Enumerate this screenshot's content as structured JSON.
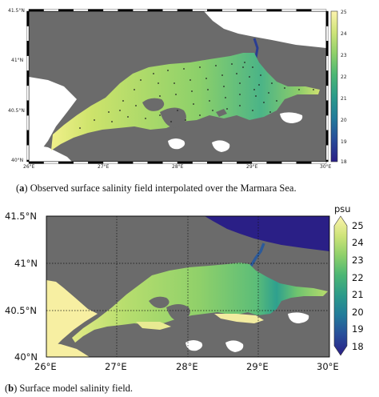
{
  "panel_a": {
    "caption_letter": "a",
    "caption_text": "Observed surface salinity field interpolated over the Marmara Sea.",
    "lat_ticks": [
      "41.5°N",
      "41°N",
      "40.5°N",
      "40°N"
    ],
    "lon_ticks": [
      "26°E",
      "27°E",
      "28°E",
      "29°E",
      "30°E"
    ],
    "colorbar_ticks": [
      "25",
      "24",
      "23",
      "22",
      "21",
      "20",
      "19",
      "18"
    ],
    "stations_shown": true
  },
  "panel_b": {
    "caption_letter": "b",
    "caption_text": "Surface model salinity field.",
    "colorbar_unit": "psu",
    "lat_ticks": [
      "41.5°N",
      "41°N",
      "40.5°N",
      "40°N"
    ],
    "lon_ticks": [
      "26°E",
      "27°E",
      "28°E",
      "29°E",
      "30°E"
    ],
    "colorbar_ticks": [
      "25",
      "24",
      "23",
      "22",
      "21",
      "20",
      "19",
      "18"
    ],
    "gridlines": "dotted"
  },
  "colors": {
    "land": "#6b6b6b",
    "sea_high_salinity": "#f4efa4",
    "sea_mid_salinity": "#7ec86a",
    "sea_low_salinity": "#2b90a4",
    "black_sea": "#26218a",
    "colorbar": [
      "#fcf3ad",
      "#cfe479",
      "#8fd06a",
      "#4db774",
      "#2b9a8a",
      "#227b9a",
      "#284e9a",
      "#2a1f86"
    ]
  },
  "chart_data": {
    "type": "heatmap",
    "variable": "surface salinity",
    "unit": "psu",
    "colorbar_range": [
      18,
      25
    ],
    "lon_range": [
      26,
      30
    ],
    "lat_range": [
      40,
      41.5
    ],
    "observed_min_visible": 22,
    "observed_max_visible": 24.5,
    "model_black_sea_value": 18,
    "model_dardanelles_value": 25
  }
}
